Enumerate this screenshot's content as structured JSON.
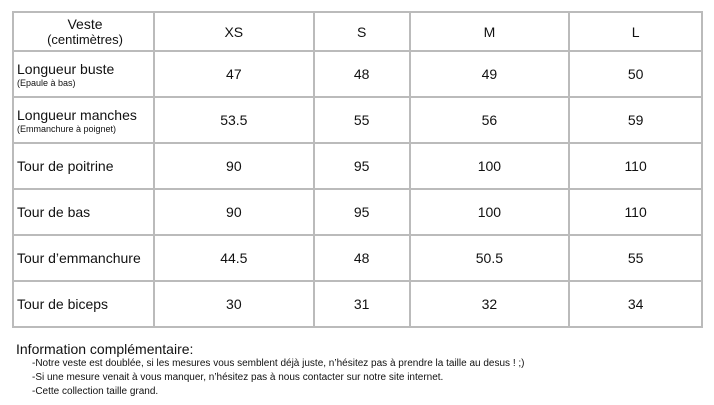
{
  "table": {
    "header": {
      "title": "Veste",
      "unit": "(centimètres)",
      "sizes": [
        "XS",
        "S",
        "M",
        "L"
      ]
    },
    "rows": [
      {
        "label": "Longueur buste",
        "sub": "(Epaule à bas)",
        "values": [
          "47",
          "48",
          "49",
          "50"
        ]
      },
      {
        "label": "Longueur manches",
        "sub": "(Emmanchure à poignet)",
        "values": [
          "53.5",
          "55",
          "56",
          "59"
        ]
      },
      {
        "label": "Tour de poitrine",
        "sub": "",
        "values": [
          "90",
          "95",
          "100",
          "110"
        ]
      },
      {
        "label": "Tour de bas",
        "sub": "",
        "values": [
          "90",
          "95",
          "100",
          "110"
        ]
      },
      {
        "label": "Tour d’emmanchure",
        "sub": "",
        "values": [
          "44.5",
          "48",
          "50.5",
          "55"
        ]
      },
      {
        "label": "Tour de biceps",
        "sub": "",
        "values": [
          "30",
          "31",
          "32",
          "34"
        ]
      }
    ]
  },
  "info": {
    "title": "Information complémentaire:",
    "lines": [
      "-Notre veste est doublée, si les mesures vous semblent déjà juste, n’hésitez pas à prendre la taille au desus ! ;)",
      "-Si une mesure venait à vous manquer, n’hésitez pas à nous contacter sur notre site internet.",
      "-Cette collection taille grand."
    ]
  }
}
